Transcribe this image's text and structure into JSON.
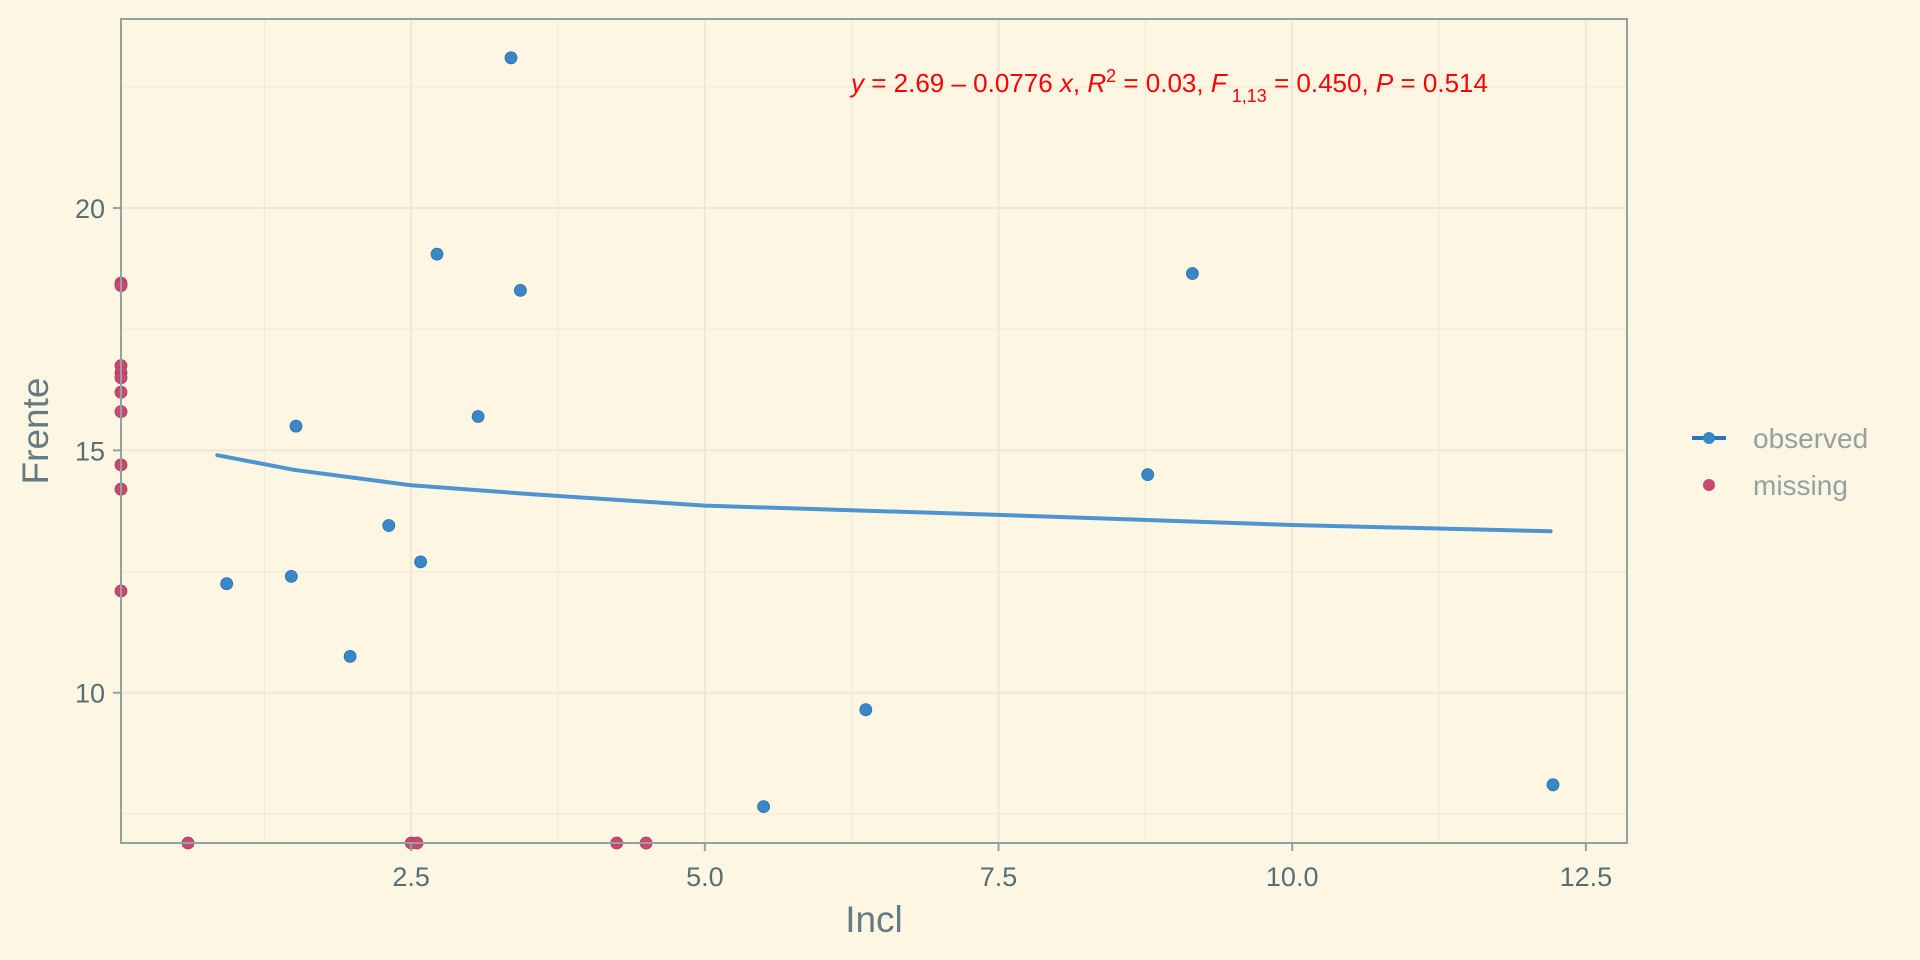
{
  "chart_data": {
    "type": "scatter",
    "title": "",
    "xlabel": "Incl",
    "ylabel": "Frente",
    "xlim": [
      0.03,
      12.85
    ],
    "ylim": [
      6.9,
      23.9
    ],
    "x_ticks": [
      2.5,
      5.0,
      7.5,
      10.0,
      12.5
    ],
    "x_tick_labels": [
      "2.5",
      "5.0",
      "7.5",
      "10.0",
      "12.5"
    ],
    "y_ticks": [
      10,
      15,
      20
    ],
    "y_tick_labels": [
      "10",
      "15",
      "20"
    ],
    "grid": true,
    "legend": {
      "position": "right",
      "entries": [
        "observed",
        "missing"
      ]
    },
    "annotation": {
      "segments": [
        {
          "text": "y",
          "italic": true
        },
        {
          "text": " = 2.69 – 0.0776 "
        },
        {
          "text": "x",
          "italic": true
        },
        {
          "text": ", "
        },
        {
          "text": "R",
          "italic": true
        },
        {
          "text": "2",
          "sup": true
        },
        {
          "text": " = 0.03, "
        },
        {
          "text": "F",
          "italic": true
        },
        {
          "text": " 1,13",
          "sub": true
        },
        {
          "text": " = 0.450, "
        },
        {
          "text": "P",
          "italic": true
        },
        {
          "text": " = 0.514"
        }
      ]
    },
    "colors": {
      "observed": "#3a87c8",
      "missing": "#c9486f",
      "fit_line": "#4e95d0",
      "annotation": "#ff0000"
    },
    "series": [
      {
        "name": "observed",
        "points": [
          {
            "x": 3.35,
            "y": 23.1
          },
          {
            "x": 2.72,
            "y": 19.05
          },
          {
            "x": 3.43,
            "y": 18.3
          },
          {
            "x": 9.15,
            "y": 18.65
          },
          {
            "x": 3.07,
            "y": 15.7
          },
          {
            "x": 1.52,
            "y": 15.5
          },
          {
            "x": 8.77,
            "y": 14.5
          },
          {
            "x": 2.31,
            "y": 13.45
          },
          {
            "x": 2.58,
            "y": 12.7
          },
          {
            "x": 1.48,
            "y": 12.4
          },
          {
            "x": 0.93,
            "y": 12.25
          },
          {
            "x": 1.98,
            "y": 10.75
          },
          {
            "x": 6.37,
            "y": 9.65
          },
          {
            "x": 5.5,
            "y": 7.65
          },
          {
            "x": 12.22,
            "y": 8.1
          }
        ]
      },
      {
        "name": "missing",
        "points": [
          {
            "x": 0.03,
            "y": 18.45
          },
          {
            "x": 0.03,
            "y": 18.4
          },
          {
            "x": 0.03,
            "y": 16.75
          },
          {
            "x": 0.03,
            "y": 16.6
          },
          {
            "x": 0.03,
            "y": 16.5
          },
          {
            "x": 0.03,
            "y": 16.2
          },
          {
            "x": 0.03,
            "y": 15.8
          },
          {
            "x": 0.03,
            "y": 14.7
          },
          {
            "x": 0.03,
            "y": 14.2
          },
          {
            "x": 0.03,
            "y": 12.1
          },
          {
            "x": 0.6,
            "y": 6.9
          },
          {
            "x": 2.5,
            "y": 6.9
          },
          {
            "x": 2.55,
            "y": 6.9
          },
          {
            "x": 4.25,
            "y": 6.9
          },
          {
            "x": 4.5,
            "y": 6.9
          }
        ]
      },
      {
        "name": "fit",
        "line": true,
        "points": [
          {
            "x": 0.85,
            "y": 14.9
          },
          {
            "x": 1.5,
            "y": 14.6
          },
          {
            "x": 2.5,
            "y": 14.28
          },
          {
            "x": 3.5,
            "y": 14.1
          },
          {
            "x": 5.0,
            "y": 13.86
          },
          {
            "x": 7.5,
            "y": 13.67
          },
          {
            "x": 10.0,
            "y": 13.46
          },
          {
            "x": 12.2,
            "y": 13.33
          }
        ]
      }
    ]
  }
}
